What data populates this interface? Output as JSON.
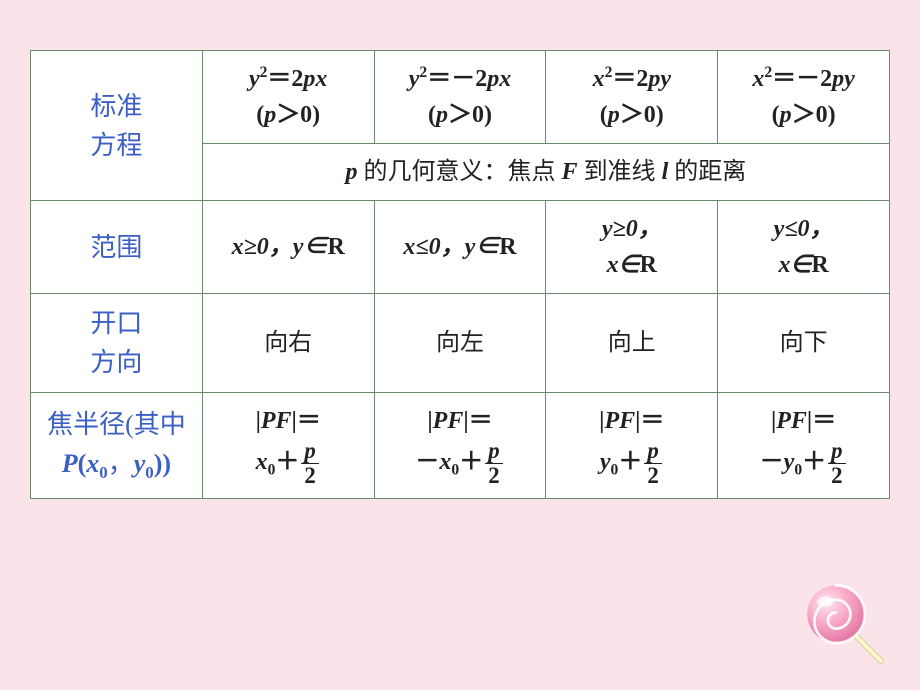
{
  "colors": {
    "page_bg": "#fae4ea",
    "cell_bg": "#ffffff",
    "border": "#6b8a6b",
    "header_text": "#3b5fc4",
    "body_text": "#222222",
    "candy_main": "#f7a6c4",
    "candy_dark": "#e37aa5",
    "candy_light": "#ffe4f0",
    "candy_stick": "#fff6cc",
    "candy_stick_edge": "#e0d8a8"
  },
  "headers": {
    "std_eq": "标准\n方程",
    "p_meaning_prefix": "p",
    "p_meaning_text": " 的几何意义：焦点 ",
    "p_meaning_F": "F",
    "p_meaning_text2": " 到准线 ",
    "p_meaning_l": "l",
    "p_meaning_text3": " 的距离",
    "range": "范围",
    "direction": "开口\n方向",
    "focal_radius_l1": "焦半径(其中",
    "focal_radius_P": "P",
    "focal_radius_l2": "(",
    "focal_radius_x0": "x",
    "focal_radius_comma": "，",
    "focal_radius_y0": "y",
    "focal_radius_l3": "))"
  },
  "eq": {
    "c1": {
      "lhs_var": "y",
      "rhs": "＝2",
      "rhs_var2": "px",
      "cond": "(p＞0)"
    },
    "c2": {
      "lhs_var": "y",
      "rhs": "＝－2",
      "rhs_var2": "px",
      "cond": "(p＞0)"
    },
    "c3": {
      "lhs_var": "x",
      "rhs": "＝2",
      "rhs_var2": "py",
      "cond": "(p＞0)"
    },
    "c4": {
      "lhs_var": "x",
      "rhs": "＝－2",
      "rhs_var2": "py",
      "cond": "(p＞0)"
    }
  },
  "range_row": {
    "c1": {
      "a": "x≥0，",
      "b": "y∈",
      "r": "R"
    },
    "c2": {
      "a": "x≤0，",
      "b": "y∈",
      "r": "R"
    },
    "c3": {
      "l1a": "y≥0，",
      "l2b": "x∈",
      "l2r": "R"
    },
    "c4": {
      "l1a": "y≤0，",
      "l2b": "x∈",
      "l2r": "R"
    }
  },
  "dir": {
    "c1": "向右",
    "c2": "向左",
    "c3": "向上",
    "c4": "向下"
  },
  "pf": {
    "label": "|PF|＝",
    "c1": {
      "pre": "",
      "var": "x",
      "plus": "＋",
      "num": "p",
      "den": "2"
    },
    "c2": {
      "pre": "－",
      "var": "x",
      "plus": "＋",
      "num": "p",
      "den": "2"
    },
    "c3": {
      "pre": "",
      "var": "y",
      "plus": "＋",
      "num": "p",
      "den": "2"
    },
    "c4": {
      "pre": "－",
      "var": "y",
      "plus": "＋",
      "num": "p",
      "den": "2"
    }
  },
  "font": {
    "header_size": 26,
    "body_size": 24
  }
}
